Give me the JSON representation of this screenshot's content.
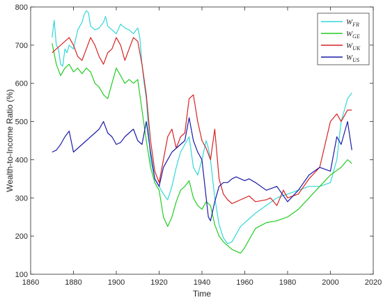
{
  "chart_data": {
    "type": "line",
    "title": "",
    "xlabel": "Time",
    "ylabel": "Wealth-to-Income Ratio (%)",
    "xlim": [
      1860,
      2020
    ],
    "ylim": [
      100,
      800
    ],
    "xticks": [
      "1860",
      "1880",
      "1900",
      "1920",
      "1940",
      "1960",
      "1980",
      "2000",
      "2020"
    ],
    "yticks": [
      "100",
      "200",
      "300",
      "400",
      "500",
      "600",
      "700",
      "800"
    ],
    "grid": false,
    "legend_position": "top-right",
    "series": [
      {
        "name": "W",
        "sub": "FR",
        "color": "#33d6d6",
        "x": [
          1870,
          1871,
          1872,
          1873,
          1874,
          1875,
          1876,
          1877,
          1878,
          1880,
          1882,
          1884,
          1885,
          1886,
          1887,
          1888,
          1890,
          1892,
          1894,
          1895,
          1896,
          1898,
          1900,
          1902,
          1904,
          1906,
          1908,
          1910,
          1911,
          1912,
          1913,
          1914,
          1916,
          1918,
          1920,
          1922,
          1924,
          1926,
          1928,
          1930,
          1932,
          1934,
          1936,
          1938,
          1940,
          1942,
          1943,
          1944,
          1946,
          1948,
          1950,
          1952,
          1954,
          1956,
          1958,
          1960,
          1962,
          1965,
          1970,
          1975,
          1980,
          1985,
          1990,
          1995,
          2000,
          2003,
          2005,
          2008,
          2010
        ],
        "y": [
          720,
          765,
          700,
          690,
          650,
          645,
          690,
          680,
          700,
          690,
          740,
          760,
          780,
          790,
          785,
          750,
          740,
          745,
          760,
          775,
          750,
          740,
          730,
          755,
          745,
          740,
          730,
          745,
          720,
          650,
          600,
          560,
          400,
          350,
          330,
          310,
          295,
          330,
          380,
          420,
          440,
          460,
          380,
          360,
          400,
          450,
          430,
          400,
          300,
          230,
          195,
          180,
          185,
          205,
          225,
          235,
          245,
          260,
          280,
          300,
          310,
          320,
          330,
          330,
          340,
          400,
          500,
          560,
          575
        ]
      },
      {
        "name": "W",
        "sub": "GE",
        "color": "#22cc22",
        "x": [
          1870,
          1872,
          1874,
          1876,
          1878,
          1880,
          1882,
          1884,
          1886,
          1888,
          1890,
          1892,
          1894,
          1896,
          1898,
          1900,
          1902,
          1904,
          1906,
          1908,
          1910,
          1912,
          1914,
          1916,
          1918,
          1920,
          1922,
          1924,
          1926,
          1928,
          1930,
          1932,
          1934,
          1936,
          1938,
          1940,
          1942,
          1944,
          1946,
          1948,
          1950,
          1952,
          1954,
          1956,
          1958,
          1960,
          1962,
          1965,
          1970,
          1975,
          1980,
          1985,
          1990,
          1995,
          2000,
          2005,
          2008,
          2010
        ],
        "y": [
          705,
          650,
          620,
          640,
          650,
          630,
          640,
          625,
          640,
          630,
          600,
          590,
          570,
          560,
          600,
          640,
          620,
          600,
          610,
          600,
          610,
          530,
          450,
          380,
          340,
          320,
          250,
          225,
          250,
          290,
          320,
          330,
          345,
          300,
          280,
          270,
          290,
          280,
          230,
          200,
          185,
          175,
          165,
          160,
          155,
          170,
          190,
          220,
          235,
          240,
          250,
          270,
          300,
          330,
          360,
          380,
          400,
          390
        ]
      },
      {
        "name": "W",
        "sub": "UK",
        "color": "#d62222",
        "x": [
          1870,
          1872,
          1874,
          1876,
          1878,
          1880,
          1882,
          1884,
          1886,
          1888,
          1890,
          1892,
          1894,
          1896,
          1898,
          1900,
          1902,
          1904,
          1906,
          1908,
          1910,
          1912,
          1914,
          1916,
          1918,
          1920,
          1922,
          1924,
          1926,
          1928,
          1930,
          1932,
          1934,
          1936,
          1938,
          1940,
          1942,
          1944,
          1946,
          1948,
          1950,
          1952,
          1954,
          1956,
          1958,
          1960,
          1962,
          1965,
          1970,
          1972,
          1975,
          1978,
          1980,
          1985,
          1990,
          1995,
          2000,
          2003,
          2005,
          2008,
          2010
        ],
        "y": [
          680,
          690,
          700,
          710,
          720,
          700,
          670,
          660,
          690,
          720,
          700,
          670,
          650,
          680,
          690,
          720,
          700,
          660,
          690,
          720,
          710,
          650,
          570,
          450,
          370,
          340,
          400,
          460,
          480,
          430,
          460,
          470,
          560,
          570,
          500,
          450,
          430,
          400,
          480,
          350,
          310,
          295,
          285,
          290,
          295,
          300,
          305,
          290,
          295,
          300,
          280,
          320,
          300,
          310,
          350,
          380,
          500,
          520,
          500,
          530,
          530
        ]
      },
      {
        "name": "W",
        "sub": "US",
        "color": "#1a1aa8",
        "x": [
          1870,
          1872,
          1874,
          1876,
          1878,
          1880,
          1882,
          1884,
          1886,
          1888,
          1890,
          1892,
          1894,
          1896,
          1898,
          1900,
          1902,
          1904,
          1906,
          1908,
          1910,
          1912,
          1914,
          1916,
          1918,
          1920,
          1922,
          1924,
          1926,
          1928,
          1930,
          1932,
          1934,
          1936,
          1938,
          1940,
          1942,
          1943,
          1944,
          1946,
          1948,
          1950,
          1952,
          1954,
          1956,
          1958,
          1960,
          1962,
          1965,
          1970,
          1975,
          1980,
          1985,
          1990,
          1995,
          2000,
          2003,
          2005,
          2008,
          2010
        ],
        "y": [
          420,
          425,
          440,
          460,
          475,
          420,
          430,
          440,
          450,
          460,
          470,
          480,
          500,
          470,
          460,
          440,
          445,
          460,
          470,
          480,
          450,
          440,
          500,
          420,
          350,
          330,
          380,
          400,
          420,
          430,
          440,
          450,
          510,
          450,
          420,
          400,
          300,
          250,
          240,
          290,
          330,
          340,
          340,
          350,
          355,
          350,
          345,
          350,
          340,
          320,
          330,
          290,
          320,
          360,
          380,
          370,
          460,
          440,
          500,
          425
        ]
      }
    ]
  }
}
